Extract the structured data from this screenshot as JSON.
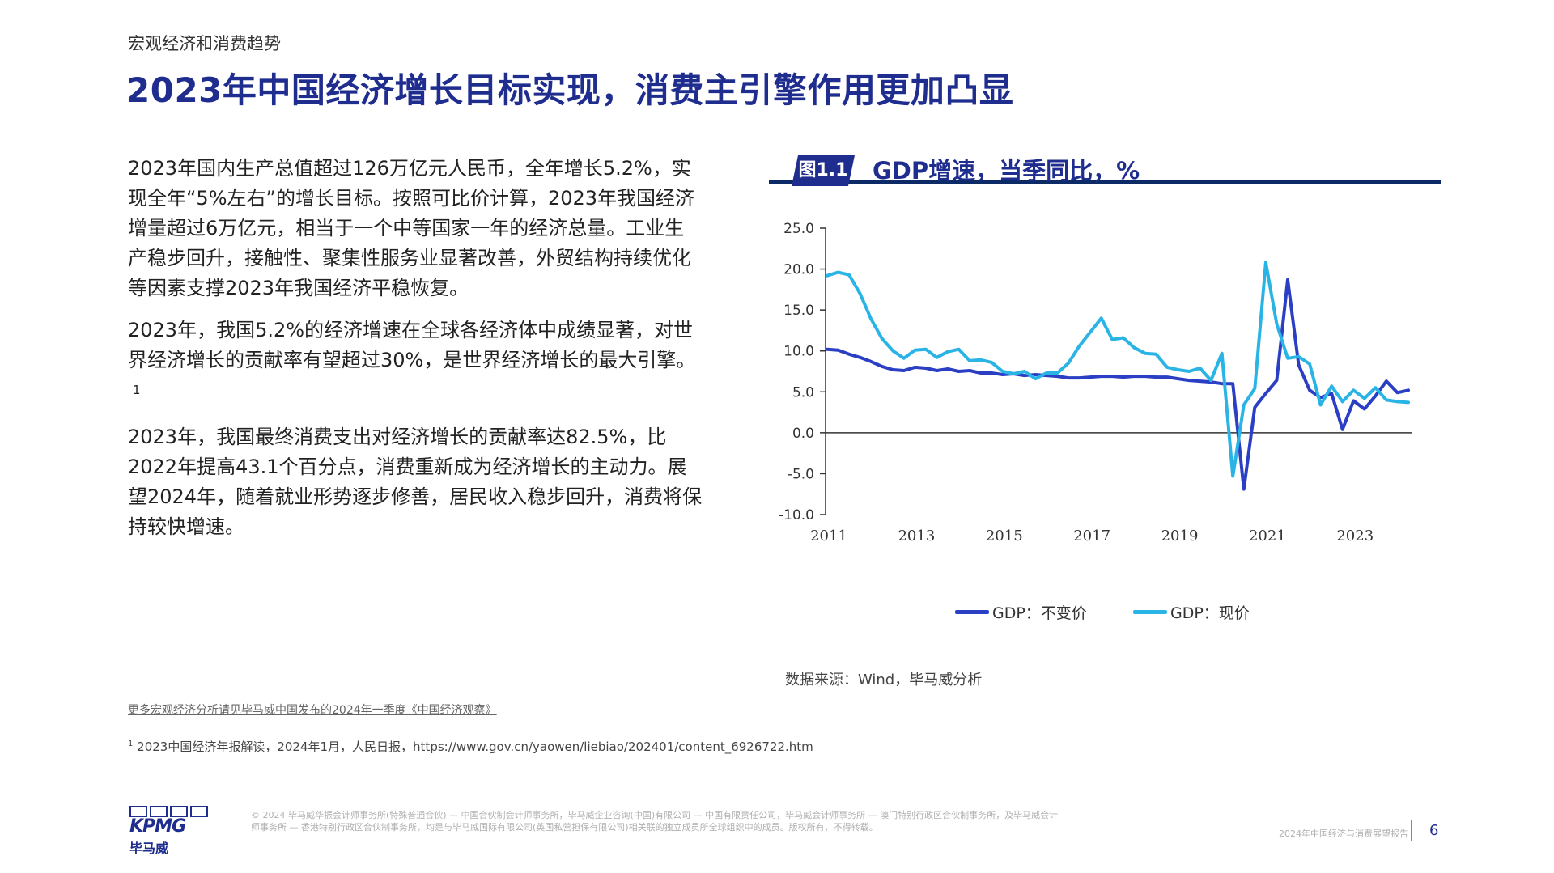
{
  "header": {
    "section": "宏观经济和消费趋势",
    "title": "2023年中国经济增长目标实现，消费主引擎作用更加凸显"
  },
  "body": {
    "paragraphs": [
      "2023年国内生产总值超过126万亿元人民币，全年增长5.2%，实现全年“5%左右”的增长目标。按照可比价计算，2023年我国经济增量超过6万亿元，相当于一个中等国家一年的经济总量。工业生产稳步回升，接触性、聚集性服务业显著改善，外贸结构持续优化等因素支撑2023年我国经济平稳恢复。",
      "2023年，我国5.2%的经济增速在全球各经济体中成绩显著，对世界经济增长的贡献率有望超过30%，是世界经济增长的最大引擎。",
      "2023年，我国最终消费支出对经济增长的贡献率达82.5%，比2022年提高43.1个百分点，消费重新成为经济增长的主动力。展望2024年，随着就业形势逐步修善，居民收入稳步回升，消费将保持较快增速。"
    ],
    "footnote_marker": "1"
  },
  "figure": {
    "tag": "图1.1",
    "title": "GDP增速，当季同比，%",
    "source": "数据来源：Wind，毕马威分析"
  },
  "colors": {
    "brand": "#1f2d8f",
    "series_constant": "#2b3fc4",
    "series_current": "#2ab4e6"
  },
  "chart_data": {
    "type": "line",
    "title": "GDP增速，当季同比，%",
    "xlabel": "",
    "ylabel": "",
    "ylim": [
      -10,
      25
    ],
    "yticks": [
      "25.0",
      "20.0",
      "15.0",
      "10.0",
      "5.0",
      "0.0",
      "-5.0",
      "-10.0"
    ],
    "xticks": [
      "2011",
      "2013",
      "2015",
      "2017",
      "2019",
      "2021",
      "2023"
    ],
    "grid": false,
    "legend_position": "bottom",
    "series": [
      {
        "name": "GDP：不变价",
        "color": "#2b3fc4",
        "values": [
          10.2,
          10.1,
          9.6,
          9.2,
          8.7,
          8.1,
          7.7,
          7.6,
          8.0,
          7.9,
          7.6,
          7.8,
          7.5,
          7.6,
          7.3,
          7.3,
          7.1,
          7.2,
          7.0,
          7.1,
          7.0,
          6.9,
          6.7,
          6.7,
          6.8,
          6.9,
          6.9,
          6.8,
          6.9,
          6.9,
          6.8,
          6.8,
          6.6,
          6.4,
          6.3,
          6.2,
          6.0,
          6.0,
          -6.9,
          3.1,
          4.8,
          6.4,
          18.7,
          8.3,
          5.2,
          4.3,
          4.8,
          0.4,
          3.9,
          2.9,
          4.5,
          6.3,
          4.9,
          5.2
        ]
      },
      {
        "name": "GDP：现价",
        "color": "#2ab4e6",
        "values": [
          19.2,
          19.6,
          19.3,
          17.0,
          13.9,
          11.5,
          10.0,
          9.1,
          10.1,
          10.2,
          9.2,
          9.9,
          10.2,
          8.8,
          8.9,
          8.6,
          7.5,
          7.2,
          7.5,
          6.6,
          7.3,
          7.3,
          8.5,
          10.6,
          12.3,
          14.0,
          11.4,
          11.6,
          10.4,
          9.7,
          9.6,
          8.0,
          7.7,
          7.5,
          7.9,
          6.4,
          9.7,
          -5.3,
          3.4,
          5.4,
          20.8,
          13.3,
          9.1,
          9.3,
          8.4,
          3.4,
          5.7,
          3.8,
          5.2,
          4.2,
          5.5,
          4.0,
          3.8,
          3.7
        ]
      }
    ]
  },
  "footer": {
    "more_link": "更多宏观经济分析请见毕马威中国发布的2024年一季度《中国经济观察》",
    "footnote": "2023中国经济年报解读，2024年1月，人民日报，https://www.gov.cn/yaowen/liebiao/202401/content_6926722.htm",
    "logo_text": "KPMG",
    "logo_cn": "毕马威",
    "legal": "© 2024 毕马威华振会计师事务所(特殊普通合伙) — 中国合伙制会计师事务所，毕马威企业咨询(中国)有限公司 — 中国有限责任公司，毕马威会计师事务所 — 澳门特别行政区合伙制事务所，及毕马威会计师事务所 — 香港特别行政区合伙制事务所，均是与毕马威国际有限公司(英国私营担保有限公司)相关联的独立成员所全球组织中的成员。版权所有，不得转载。",
    "report_name": "2024年中国经济与消费展望报告",
    "page_number": "6"
  }
}
